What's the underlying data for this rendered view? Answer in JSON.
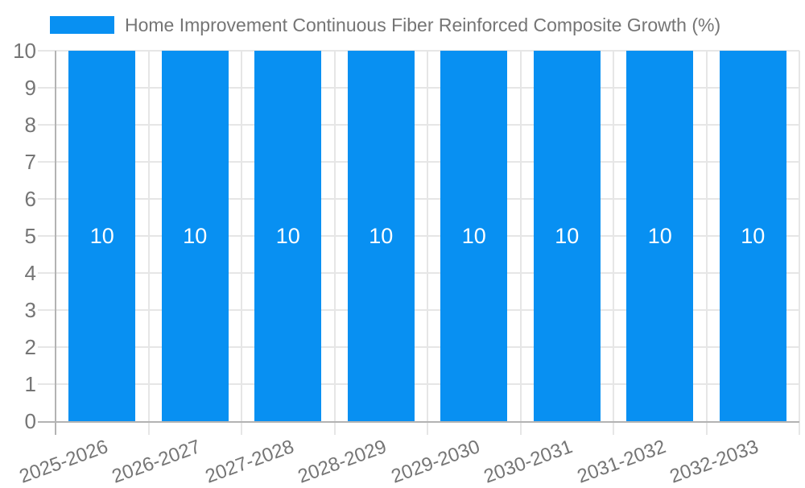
{
  "chart_data": {
    "type": "bar",
    "title": "Home Improvement Continuous Fiber Reinforced Composite Growth (%)",
    "legend_label": "Home Improvement Continuous Fiber Reinforced Composite Growth (%)",
    "legend_position": "top",
    "categories": [
      "2025-2026",
      "2026-2027",
      "2027-2028",
      "2028-2029",
      "2029-2030",
      "2030-2031",
      "2031-2032",
      "2032-2033"
    ],
    "values": [
      10,
      10,
      10,
      10,
      10,
      10,
      10,
      10
    ],
    "bar_labels": [
      "10",
      "10",
      "10",
      "10",
      "10",
      "10",
      "10",
      "10"
    ],
    "xlabel": "",
    "ylabel": "",
    "ylim": [
      0,
      10
    ],
    "yticks": [
      0,
      1,
      2,
      3,
      4,
      5,
      6,
      7,
      8,
      9,
      10
    ],
    "grid": true,
    "colors": {
      "bar": "#0890f2",
      "bar_label": "#ffffff",
      "text": "#757575",
      "grid": "#e6e6e6",
      "axis": "#b3b3b3",
      "background": "#ffffff"
    }
  }
}
